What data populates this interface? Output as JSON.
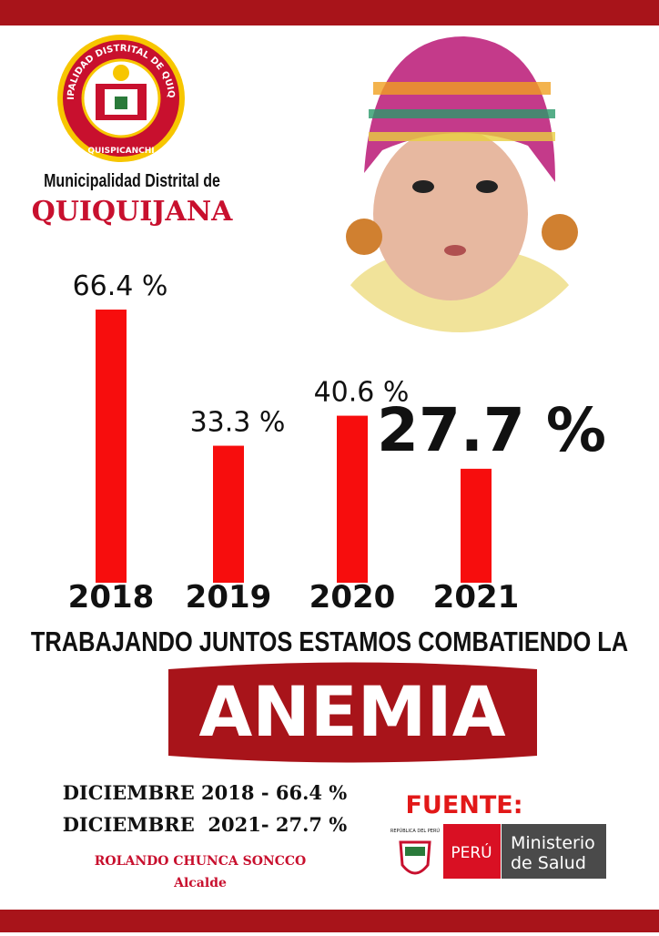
{
  "header": {
    "logo_ring": "MUNICIPALIDAD DISTRITAL DE QUIQUIJANA",
    "logo_province": "QUISPICANCHI",
    "org_line": "Municipalidad Distrital de",
    "org_name": "QUIQUIJANA"
  },
  "chart_data": {
    "type": "bar",
    "categories": [
      "2018",
      "2019",
      "2020",
      "2021"
    ],
    "values": [
      66.4,
      33.3,
      40.6,
      27.7
    ],
    "value_labels": [
      "66.4 %",
      "33.3 %",
      "40.6 %",
      "27.7 %"
    ],
    "color": "#f70d0d"
  },
  "slogan": {
    "line": "TRABAJANDO JUNTOS ESTAMOS COMBATIENDO LA",
    "highlight": "ANEMIA"
  },
  "footer": {
    "facts": [
      "DICIEMBRE 2018 - 66.4 %",
      "DICIEMBRE  2021- 27.7 %"
    ],
    "signatory": "ROLANDO CHUNCA SONCCO",
    "role": "Alcalde",
    "source_label": "FUENTE:",
    "seal_text": "REPÚBLICA DEL PERÚ",
    "brand": "PERÚ",
    "ministry": [
      "Ministerio",
      "de Salud"
    ]
  }
}
